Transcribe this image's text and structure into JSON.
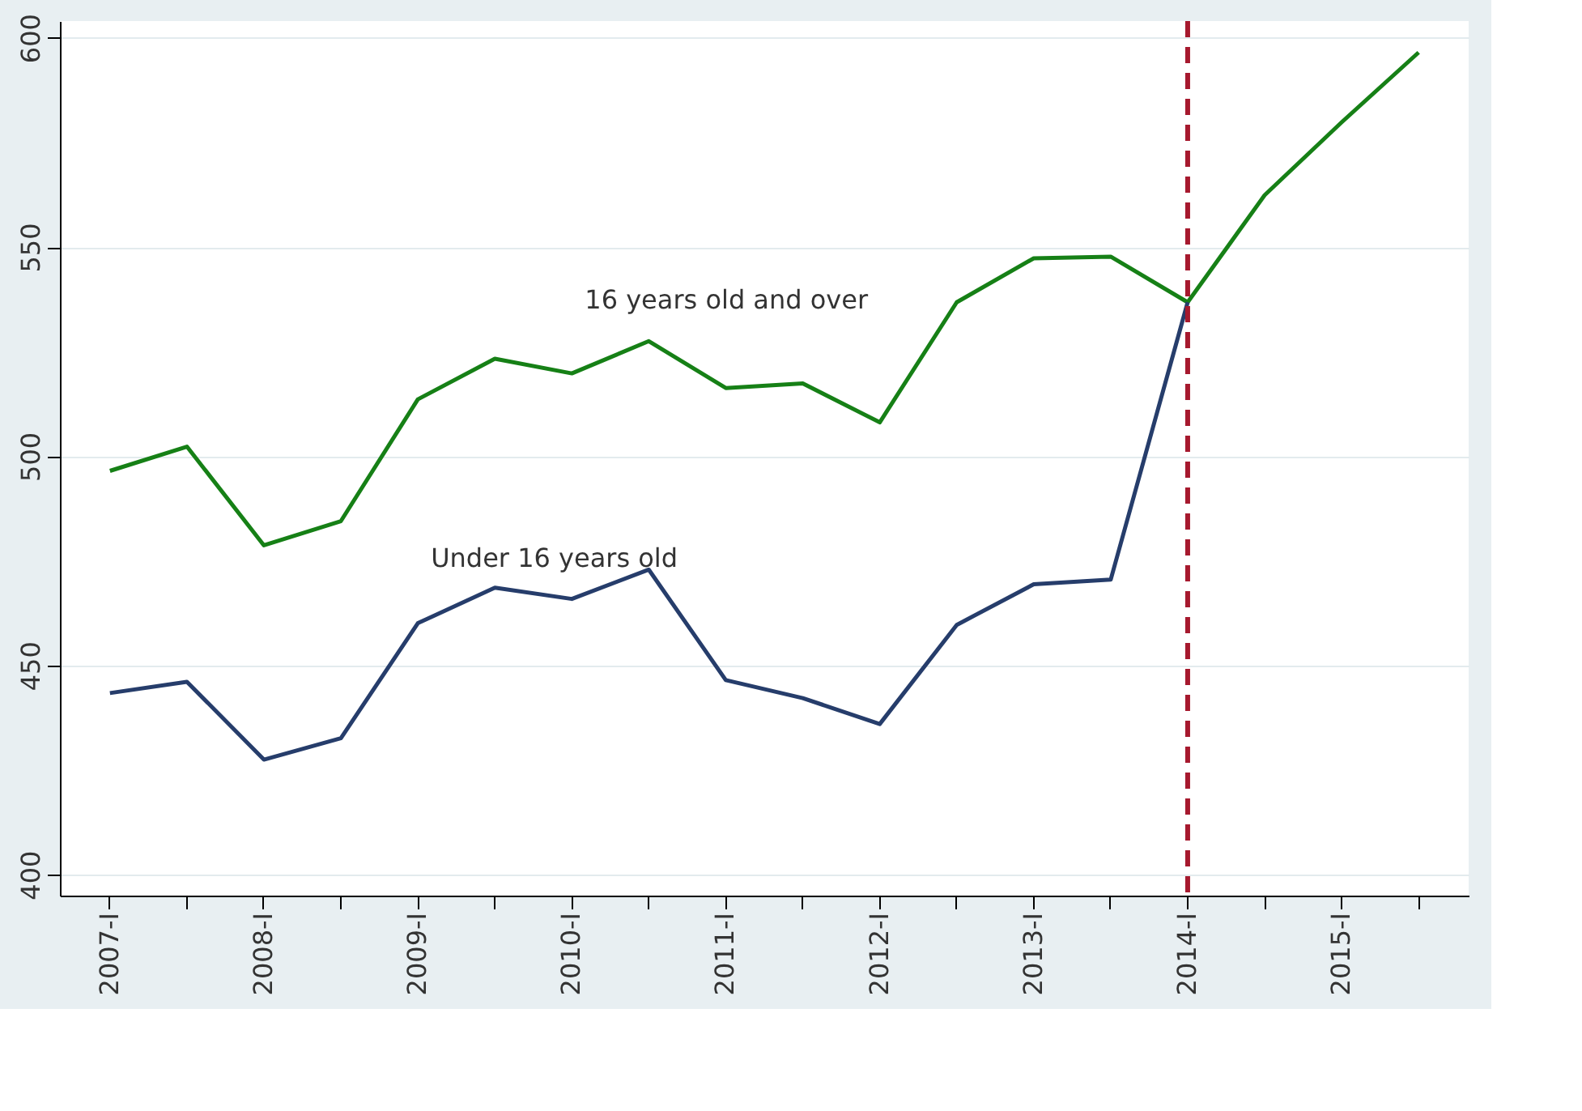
{
  "chart_data": {
    "type": "line",
    "categories": [
      "2007-I",
      null,
      "2008-I",
      null,
      "2009-I",
      null,
      "2010-I",
      null,
      "2011-I",
      null,
      "2012-I",
      null,
      "2013-I",
      null,
      "2014-I",
      null,
      "2015-I",
      null
    ],
    "series": [
      {
        "name": "16 years old and over",
        "color": "#168016",
        "values": [
          496.5,
          502.3,
          478.7,
          484.5,
          513.6,
          523.3,
          519.8,
          527.5,
          516.3,
          517.4,
          508.1,
          536.8,
          547.3,
          547.7,
          536.8,
          562.4,
          579.8,
          596.5
        ]
      },
      {
        "name": "Under 16 years old",
        "color": "#263d6b",
        "values": [
          443.4,
          446.1,
          427.5,
          432.6,
          460.1,
          468.6,
          465.9,
          472.9,
          446.5,
          442.2,
          436.0,
          459.7,
          469.4,
          470.5,
          536.8,
          null,
          null,
          null
        ]
      }
    ],
    "ref_lines": [
      {
        "axis": "x",
        "value": "2014-I",
        "color": "#a6192e",
        "line_style": "dashed"
      }
    ],
    "ylim": [
      395,
      604
    ],
    "yticks": [
      400,
      450,
      500,
      550,
      600
    ],
    "grid": "y",
    "line_style": "solid",
    "marker": "none"
  }
}
